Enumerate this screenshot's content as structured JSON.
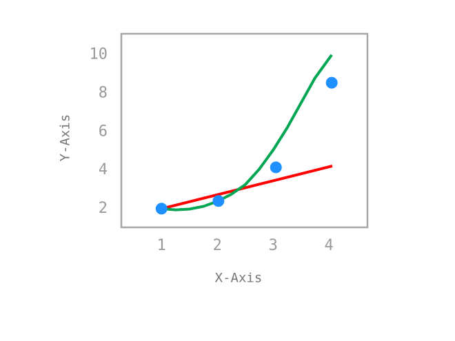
{
  "chart_data": {
    "type": "scatter",
    "x_label": "X-Axis",
    "y_label": "Y-Axis",
    "xlim": [
      0.28,
      4.69
    ],
    "ylim": [
      1.03,
      11.1
    ],
    "xticks": [
      1,
      2,
      3,
      4
    ],
    "yticks": [
      2,
      4,
      6,
      8,
      10
    ],
    "frame_color": "#a6a6a6",
    "series": [
      {
        "type": "line",
        "color": "#ff0000",
        "x": [
          1,
          4.06
        ],
        "values": [
          2,
          4.22
        ]
      },
      {
        "type": "line",
        "color": "#00a651",
        "x": [
          1,
          1.25,
          1.5,
          1.75,
          2,
          2.25,
          2.5,
          2.75,
          3,
          3.25,
          3.5,
          3.75,
          4.05
        ],
        "values": [
          2,
          1.94,
          1.98,
          2.12,
          2.38,
          2.75,
          3.25,
          4.05,
          5.05,
          6.2,
          7.5,
          8.8,
          10
        ]
      },
      {
        "type": "scatter",
        "color": "#1e90ff",
        "x": [
          1,
          2.02,
          3.05,
          4.05
        ],
        "values": [
          2,
          2.4,
          4.15,
          8.55
        ]
      }
    ]
  }
}
